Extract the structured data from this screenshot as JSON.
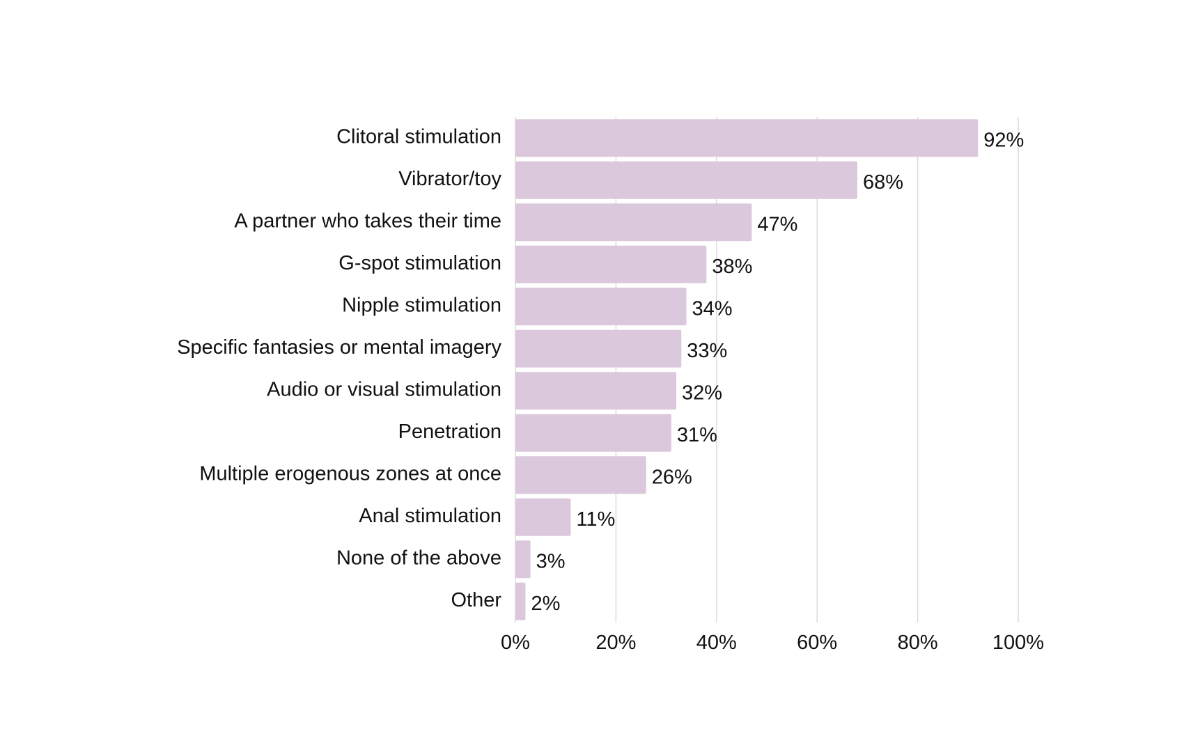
{
  "chart_data": {
    "type": "bar",
    "orientation": "horizontal",
    "title": "",
    "xlabel": "",
    "ylabel": "",
    "categories": [
      "Clitoral stimulation",
      "Vibrator/toy",
      "A partner who takes their time",
      "G-spot stimulation",
      "Nipple stimulation",
      "Specific fantasies or mental imagery",
      "Audio or visual stimulation",
      "Penetration",
      "Multiple erogenous zones at once",
      "Anal stimulation",
      "None of the above",
      "Other"
    ],
    "values": [
      92,
      68,
      47,
      38,
      34,
      33,
      32,
      31,
      26,
      11,
      3,
      2
    ],
    "value_labels": [
      "92%",
      "68%",
      "47%",
      "38%",
      "34%",
      "33%",
      "32%",
      "31%",
      "26%",
      "11%",
      "3%",
      "2%"
    ],
    "xlim": [
      0,
      100
    ],
    "x_ticks": [
      0,
      20,
      40,
      60,
      80,
      100
    ],
    "x_tick_labels": [
      "0%",
      "20%",
      "40%",
      "60%",
      "80%",
      "100%"
    ],
    "grid": "vertical",
    "legend": "none",
    "bar_color": "#dcc8dc"
  }
}
